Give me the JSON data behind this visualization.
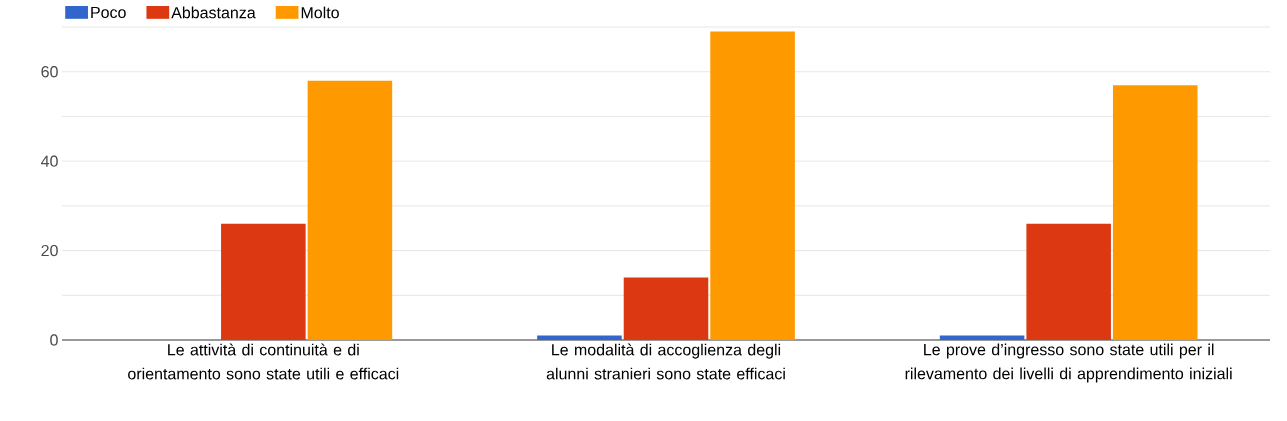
{
  "chart_data": {
    "type": "bar",
    "categories": [
      "Le attività di continuità e di orientamento sono state utili e efficaci",
      "Le modalità di accoglienza degli alunni stranieri sono state efficaci",
      "Le prove d’ingresso sono state utili per il rilevamento dei livelli di apprendimento iniziali"
    ],
    "series": [
      {
        "name": "Poco",
        "color": "#3366cc",
        "values": [
          0,
          1,
          1
        ]
      },
      {
        "name": "Abbastanza",
        "color": "#dc3912",
        "values": [
          26,
          14,
          26
        ]
      },
      {
        "name": "Molto",
        "color": "#ff9900",
        "values": [
          58,
          69,
          57
        ]
      }
    ],
    "ylim": [
      0,
      70
    ],
    "yticks": [
      0,
      {
        "value": 10,
        "label": null
      },
      20,
      {
        "value": 30,
        "label": null
      },
      40,
      {
        "value": 50,
        "label": null
      },
      60,
      {
        "value": 70,
        "label": null
      }
    ],
    "grid": "y",
    "legend": "top left"
  }
}
